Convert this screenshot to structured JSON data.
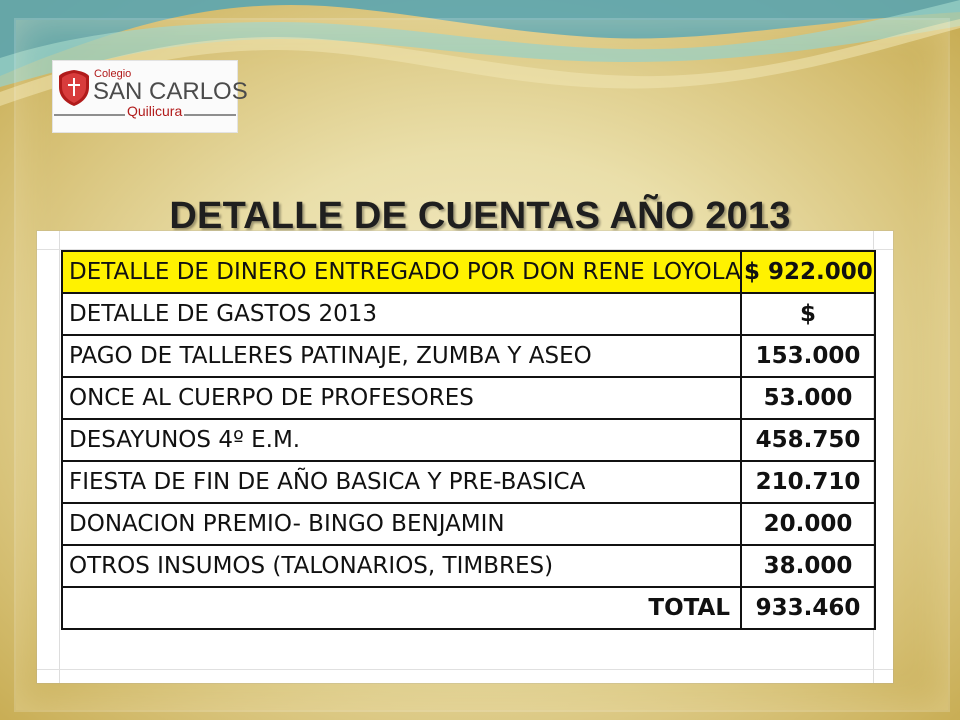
{
  "logo": {
    "small_text": "Colegio",
    "main_text": "SAN CARLOS",
    "sub_text": "Quilicura",
    "emblem_text": "SAN CARLOS"
  },
  "title": "DETALLE DE CUENTAS AÑO 2013",
  "table": {
    "rows": [
      {
        "label": "DETALLE DE DINERO ENTREGADO POR DON RENE LOYOLA",
        "amount": "$ 922.000",
        "highlight": true
      },
      {
        "label": "DETALLE DE GASTOS 2013",
        "amount": "$"
      },
      {
        "label": "PAGO DE TALLERES PATINAJE, ZUMBA Y ASEO",
        "amount": "153.000"
      },
      {
        "label": "ONCE AL CUERPO DE PROFESORES",
        "amount": "53.000"
      },
      {
        "label": "DESAYUNOS 4º E.M.",
        "amount": "458.750"
      },
      {
        "label": "FIESTA DE FIN DE AÑO BASICA Y PRE-BASICA",
        "amount": "210.710"
      },
      {
        "label": "DONACION PREMIO- BINGO BENJAMIN",
        "amount": "20.000"
      },
      {
        "label": "OTROS INSUMOS (TALONARIOS, TIMBRES)",
        "amount": "38.000"
      }
    ],
    "total": {
      "label": "TOTAL",
      "amount": "933.460"
    }
  },
  "colors": {
    "highlight": "#fff200",
    "title": "#1f1f1f",
    "logo_red": "#b11b1b",
    "slide_background": "#d7c98c"
  }
}
